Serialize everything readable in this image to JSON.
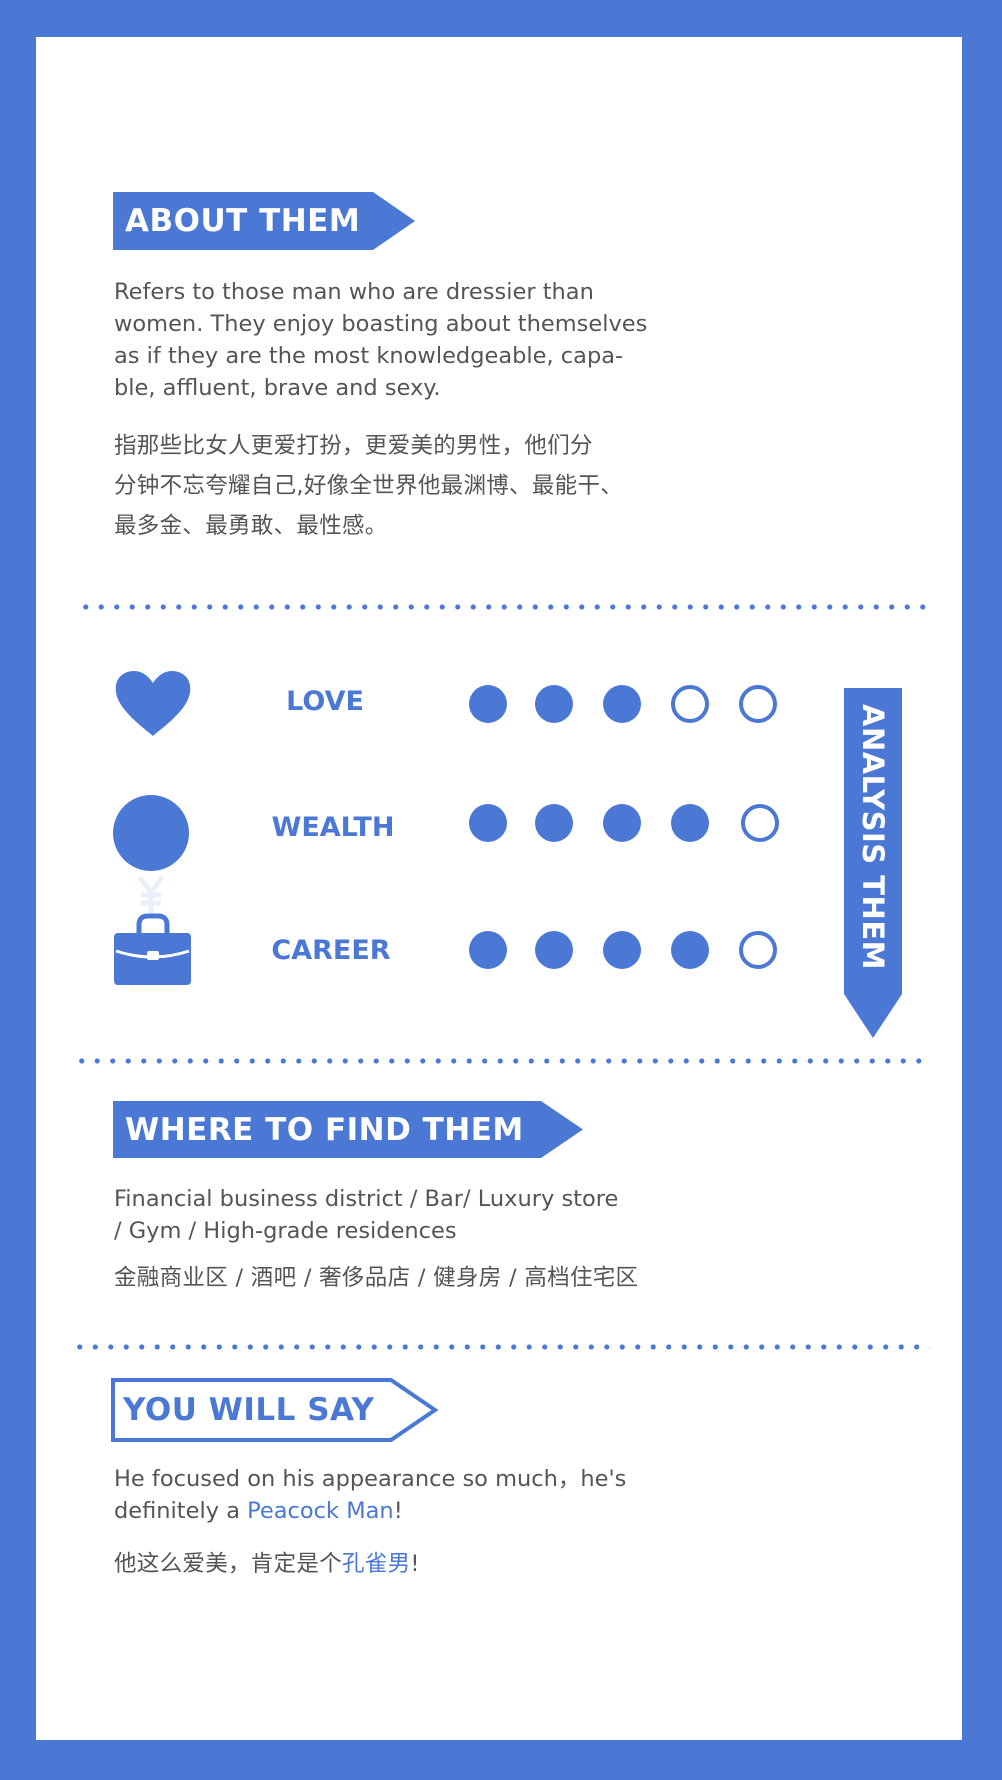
{
  "about": {
    "heading": "ABOUT THEM",
    "english": [
      "Refers to those man who are dressier than",
      "women. They enjoy boasting about themselves",
      "as if they are the most knowledgeable, capa-",
      "ble, affluent, brave and sexy."
    ],
    "chinese": [
      "指那些比女人更爱打扮，更爱美的男性，他们分",
      "分钟不忘夸耀自己,好像全世界他最渊博、最能干、",
      "最多金、最勇敢、最性感。"
    ]
  },
  "analysis": {
    "banner": "ANALYSIS THEM",
    "ratings": [
      {
        "label": "LOVE",
        "icon": "heart-icon",
        "value": 3,
        "max": 5
      },
      {
        "label": "WEALTH",
        "icon": "yen-coin-icon",
        "value": 4,
        "max": 5
      },
      {
        "label": "CAREER",
        "icon": "briefcase-icon",
        "value": 4,
        "max": 5
      }
    ]
  },
  "where": {
    "heading": "WHERE TO FIND THEM",
    "english": [
      "Financial business district / Bar/ Luxury store",
      "/ Gym / High-grade residences"
    ],
    "chinese": "金融商业区 / 酒吧 / 奢侈品店 / 健身房 / 高档住宅区"
  },
  "say": {
    "heading": "YOU WILL SAY",
    "english_line1": "He focused on his appearance so much，he's",
    "english_line2_prefix": "definitely a ",
    "english_highlight": "Peacock Man",
    "english_suffix": "!",
    "chinese_prefix": "他这么爱美，肯定是个",
    "chinese_highlight": "孔雀男",
    "chinese_suffix": "!"
  },
  "colors": {
    "accent": "#4a78d4",
    "text": "#555555",
    "background": "#ffffff"
  }
}
